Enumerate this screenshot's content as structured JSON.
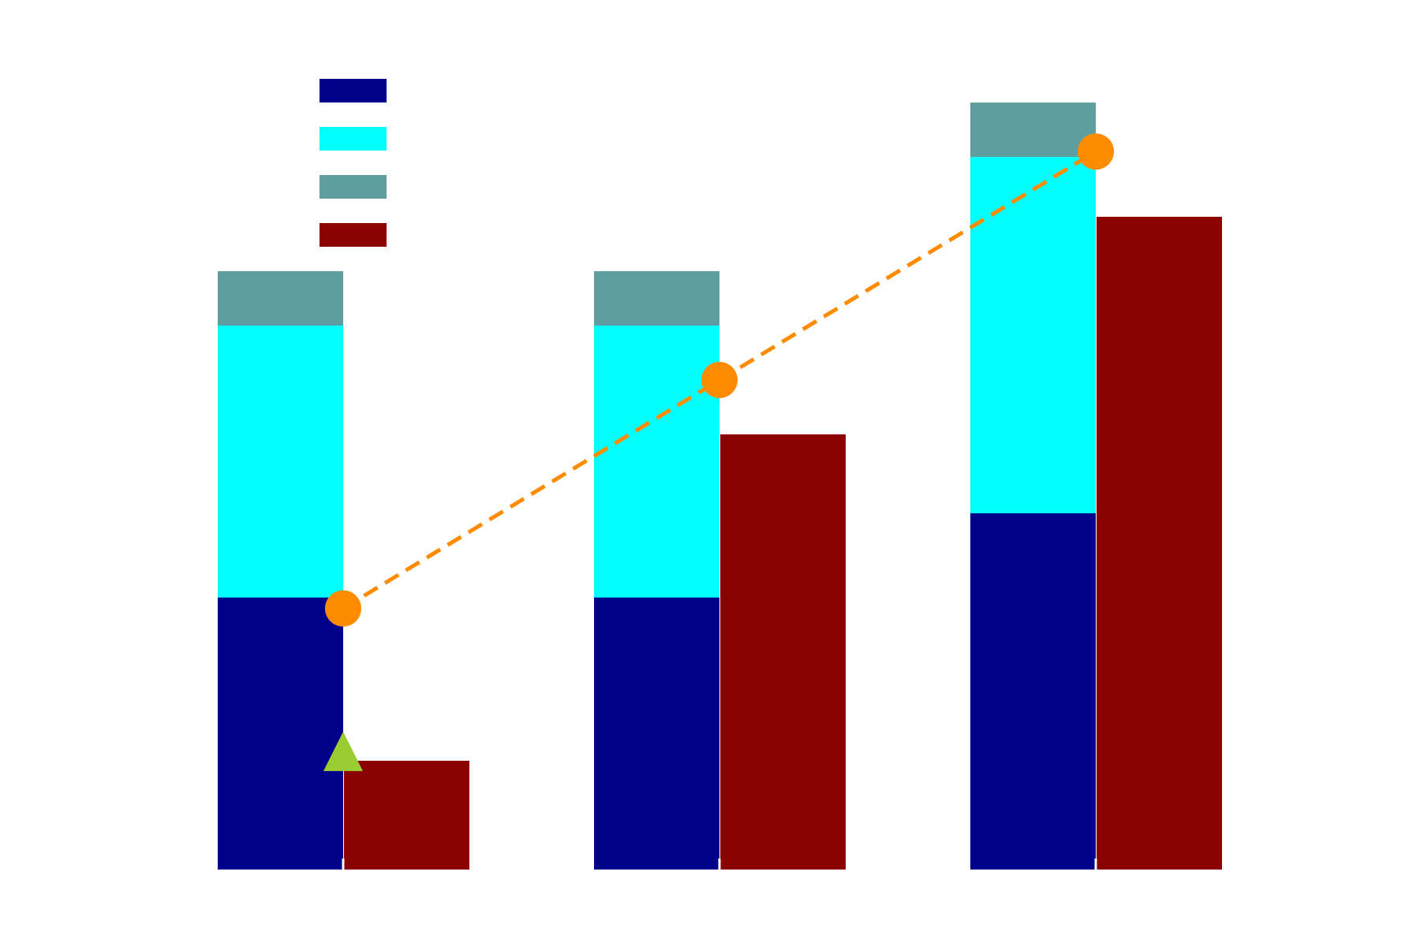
{
  "chart_data": {
    "type": "bar",
    "categories": [
      "",
      "",
      ""
    ],
    "stacked_series": [
      {
        "name": "",
        "color": "#00008b",
        "values": [
          5,
          5,
          6.55
        ]
      },
      {
        "name": "",
        "color": "#00ffff",
        "values": [
          5,
          5,
          6.55
        ]
      },
      {
        "name": "",
        "color": "#5f9ea0",
        "values": [
          1,
          1,
          1
        ]
      }
    ],
    "bar_series": [
      {
        "name": "",
        "color": "#8b0000",
        "values": [
          2,
          8,
          12
        ]
      }
    ],
    "line_series": [
      {
        "name": "",
        "color": "#ff8c00",
        "style": "dashed",
        "marker": "circle",
        "values": [
          4.8,
          9,
          13.2
        ]
      }
    ],
    "markers": [
      {
        "shape": "triangle",
        "color": "#9acd32",
        "category_index": 0,
        "value": 2.1
      }
    ],
    "ylim": [
      0,
      15
    ],
    "grid": false,
    "legend": "top-left",
    "title": "",
    "xlabel": "",
    "ylabel": ""
  }
}
